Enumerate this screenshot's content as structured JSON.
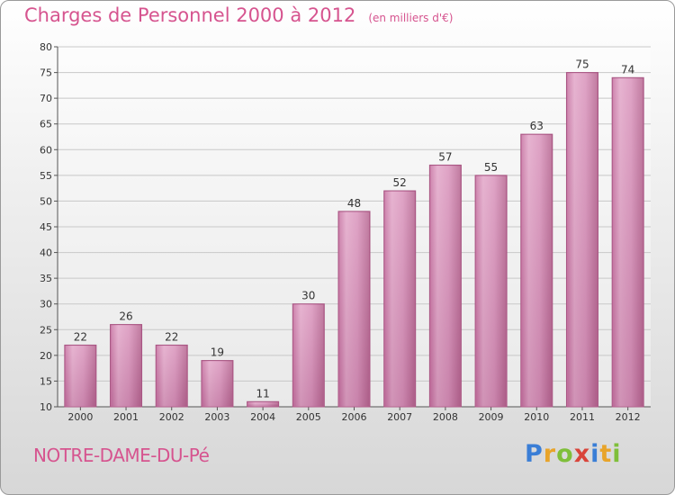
{
  "title": "Charges de Personnel 2000 à 2012",
  "subtitle": "(en milliers d'€)",
  "location": "NOTRE-DAME-DU-Pé",
  "logo": {
    "text": "Proxiti",
    "colors": [
      "#3a7ed6",
      "#e8a42a",
      "#7fbf3a",
      "#d9443a",
      "#3a7ed6",
      "#e8a42a",
      "#7fbf3a"
    ]
  },
  "chart_data": {
    "type": "bar",
    "categories": [
      "2000",
      "2001",
      "2002",
      "2003",
      "2004",
      "2005",
      "2006",
      "2007",
      "2008",
      "2009",
      "2010",
      "2011",
      "2012"
    ],
    "values": [
      22,
      26,
      22,
      19,
      11,
      30,
      48,
      52,
      57,
      55,
      63,
      75,
      74
    ],
    "ylim": [
      10,
      80
    ],
    "yticks": [
      10,
      15,
      20,
      25,
      30,
      35,
      40,
      45,
      50,
      55,
      60,
      65,
      70,
      75,
      80
    ],
    "grid": true,
    "bar_color": "#d993bb"
  }
}
